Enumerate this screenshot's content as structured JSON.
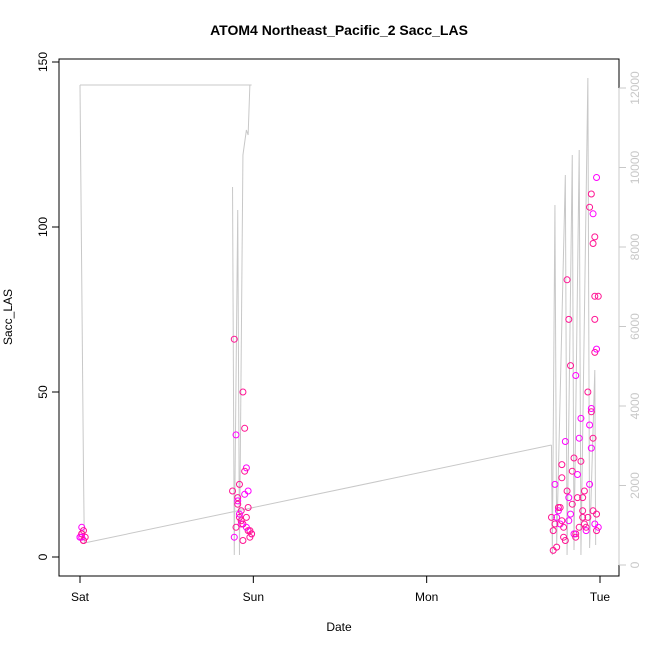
{
  "chart_data": {
    "type": "scatter",
    "title": "ATOM4 Northeast_Pacific_2 Sacc_LAS",
    "xlabel": "Date",
    "ylabel": "Sacc_LAS",
    "x_ticks": [
      "Sat",
      "Sun",
      "Mon",
      "Tue"
    ],
    "x_range": [
      "Sat 00:00",
      "Tue 00:00"
    ],
    "ylim": [
      0,
      150
    ],
    "y_ticks": [
      0,
      50,
      100,
      150
    ],
    "y2_ticks": [
      0,
      2000,
      4000,
      6000,
      8000,
      10000,
      12000
    ],
    "y2lim": [
      0,
      12000
    ],
    "grid": false,
    "legend": "none",
    "colors": {
      "points": "#ff1493",
      "points_alt": "#ff00ff",
      "secondary_line": "#c8c8c8",
      "right_axis": "#c8c8c8"
    },
    "series": [
      {
        "role": "points",
        "x_days": [
          0.0,
          0.01,
          0.02,
          0.01,
          0.03,
          0.02,
          0.0,
          0.01,
          0.02,
          0.01,
          0.88,
          0.89,
          0.9,
          0.91,
          0.92,
          0.93,
          0.94,
          0.95,
          0.96,
          0.97,
          0.98,
          0.99,
          0.9,
          0.93,
          0.95,
          0.92,
          0.96,
          0.89,
          0.97,
          0.94,
          0.91,
          0.98,
          0.95,
          0.92,
          0.99,
          0.93,
          0.96,
          0.94,
          0.91,
          0.97,
          2.72,
          2.73,
          2.74,
          2.75,
          2.76,
          2.77,
          2.78,
          2.79,
          2.8,
          2.81,
          2.82,
          2.83,
          2.84,
          2.85,
          2.86,
          2.87,
          2.88,
          2.89,
          2.9,
          2.91,
          2.92,
          2.93,
          2.94,
          2.95,
          2.96,
          2.97,
          2.98,
          2.99,
          2.74,
          2.76,
          2.78,
          2.8,
          2.82,
          2.84,
          2.86,
          2.88,
          2.9,
          2.92,
          2.94,
          2.96,
          2.98,
          2.75,
          2.79,
          2.83,
          2.87,
          2.91,
          2.95,
          2.99,
          2.77,
          2.81,
          2.85,
          2.89,
          2.93,
          2.97,
          2.73,
          2.78,
          2.82,
          2.86,
          2.9,
          2.94,
          2.98,
          2.95,
          2.96,
          2.97,
          2.97,
          2.98,
          2.97,
          2.96,
          2.95
        ],
        "y": [
          6,
          7,
          5,
          9,
          6,
          8,
          6,
          7,
          5,
          6,
          20,
          66,
          37,
          18,
          12,
          10,
          50,
          39,
          27,
          15,
          8,
          7,
          9,
          14,
          19,
          22,
          12,
          6,
          8,
          10,
          17,
          6,
          26,
          13,
          7,
          11,
          9,
          5,
          16,
          20,
          12,
          8,
          22,
          3,
          15,
          10,
          28,
          9,
          35,
          84,
          72,
          13,
          26,
          30,
          55,
          18,
          9,
          42,
          12,
          20,
          8,
          50,
          106,
          33,
          95,
          62,
          115,
          79,
          10,
          14,
          24,
          5,
          11,
          16,
          7,
          36,
          18,
          9,
          40,
          14,
          8,
          12,
          6,
          58,
          25,
          10,
          44,
          9,
          15,
          20,
          7,
          29,
          12,
          10,
          2,
          11,
          18,
          6,
          14,
          22,
          13,
          110,
          104,
          72,
          79,
          63,
          97,
          36,
          45
        ]
      }
    ]
  }
}
